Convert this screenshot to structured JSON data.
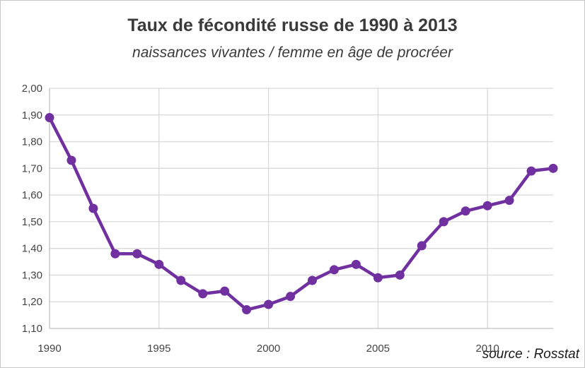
{
  "title": "Taux de fécondité russe de 1990 à 2013",
  "subtitle": "naissances vivantes / femme en âge de procréer",
  "source": "source : Rosstat",
  "colors": {
    "line": "#7030a0",
    "grid": "#d9d9d9",
    "axis": "#bfbfbf"
  },
  "chart_data": {
    "type": "line",
    "title": "Taux de fécondité russe de 1990 à 2013",
    "subtitle": "naissances vivantes / femme en âge de procréer",
    "xlabel": "",
    "ylabel": "",
    "x": [
      1990,
      1991,
      1992,
      1993,
      1994,
      1995,
      1996,
      1997,
      1998,
      1999,
      2000,
      2001,
      2002,
      2003,
      2004,
      2005,
      2006,
      2007,
      2008,
      2009,
      2010,
      2011,
      2012,
      2013
    ],
    "series": [
      {
        "values": [
          1.89,
          1.73,
          1.55,
          1.38,
          1.38,
          1.34,
          1.28,
          1.23,
          1.24,
          1.17,
          1.19,
          1.22,
          1.28,
          1.32,
          1.34,
          1.29,
          1.3,
          1.41,
          1.5,
          1.54,
          1.56,
          1.58,
          1.69,
          1.7
        ]
      }
    ],
    "xlim": [
      1990,
      2013
    ],
    "ylim": [
      1.1,
      2.0
    ],
    "xticks": [
      "1990",
      "1995",
      "2000",
      "2005",
      "2010"
    ],
    "yticks": [
      "1,10",
      "1,20",
      "1,30",
      "1,40",
      "1,50",
      "1,60",
      "1,70",
      "1,80",
      "1,90",
      "2,00"
    ],
    "grid": true,
    "legend": "none"
  }
}
